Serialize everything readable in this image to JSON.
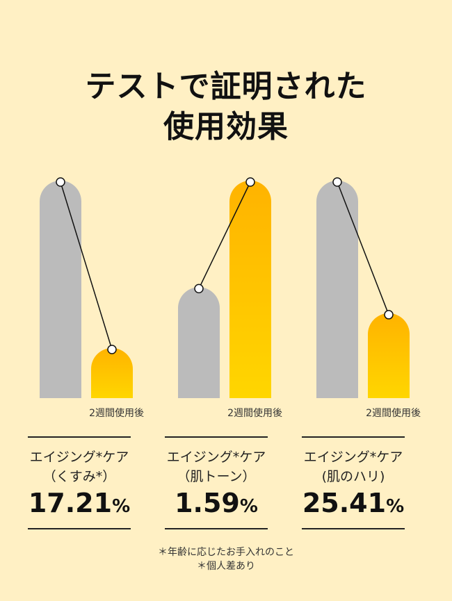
{
  "title": [
    "テストで証明された",
    "使用効果"
  ],
  "chart_data": {
    "type": "bar",
    "categories": [
      "エイジング*ケア(くすみ*)",
      "エイジング*ケア(肌トーン)",
      "エイジング*ケア(肌のハリ)"
    ],
    "series": [
      {
        "values": [
          1.0,
          0.51,
          1.0
        ]
      },
      {
        "values": [
          0.23,
          1.0,
          0.39
        ]
      }
    ],
    "after_label": "2週間使用後",
    "colors": {
      "before": "#bbbbbb",
      "after_top": "#ffb300",
      "after_bottom": "#ffd600"
    }
  },
  "cards": [
    {
      "line1": "エイジング*ケア",
      "line2": "（くすみ*）",
      "value": "17.21",
      "unit": "%"
    },
    {
      "line1": "エイジング*ケア",
      "line2": "（肌トーン）",
      "value": "1.59",
      "unit": "%"
    },
    {
      "line1": "エイジング*ケア",
      "line2": "(肌のハリ)",
      "value": "25.41",
      "unit": "%"
    }
  ],
  "notes": [
    "＊年齢に応じたお手入れのこと",
    "＊個人差あり"
  ]
}
